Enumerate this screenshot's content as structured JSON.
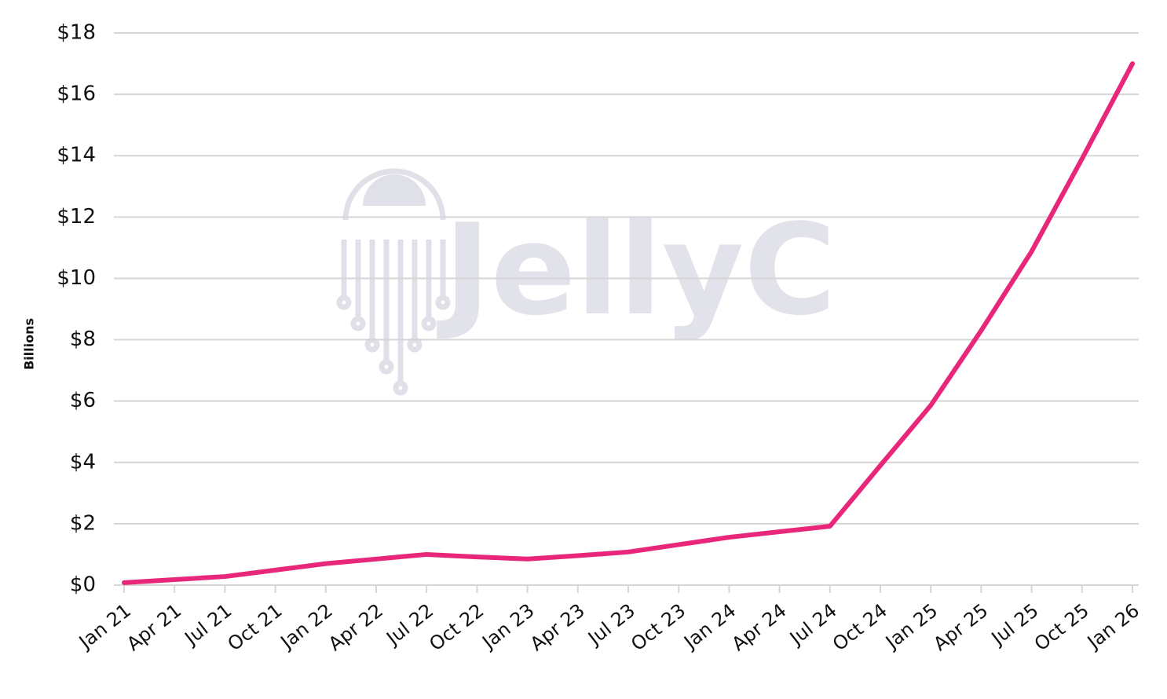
{
  "chart_data": {
    "type": "line",
    "watermark": "JellyC",
    "y_label": "Billions",
    "categories": [
      "Jan 21",
      "Apr 21",
      "Jul 21",
      "Oct 21",
      "Jan 22",
      "Apr 22",
      "Jul 22",
      "Oct 22",
      "Jan 23",
      "Apr 23",
      "Jul 23",
      "Oct 23",
      "Jan 24",
      "Apr 24",
      "Jul 24",
      "Oct 24",
      "Jan 25",
      "Apr 25",
      "Jul 25",
      "Oct 25",
      "Jan 26"
    ],
    "values": [
      0.08,
      0.18,
      0.28,
      0.49,
      0.7,
      0.85,
      1.0,
      0.92,
      0.85,
      0.96,
      1.08,
      1.32,
      1.56,
      1.74,
      1.92,
      3.9,
      5.86,
      8.3,
      10.88,
      13.9,
      17.0
    ],
    "color": "#e8267a",
    "ylim": [
      0,
      18
    ],
    "yticks": [
      {
        "value": 0,
        "label": "$0"
      },
      {
        "value": 2,
        "label": "$2"
      },
      {
        "value": 4,
        "label": "$4"
      },
      {
        "value": 6,
        "label": "$6"
      },
      {
        "value": 8,
        "label": "$8"
      },
      {
        "value": 10,
        "label": "$10"
      },
      {
        "value": 12,
        "label": "$12"
      },
      {
        "value": 14,
        "label": "$14"
      },
      {
        "value": 16,
        "label": "$16"
      },
      {
        "value": 18,
        "label": "$18"
      }
    ],
    "grid": true
  }
}
